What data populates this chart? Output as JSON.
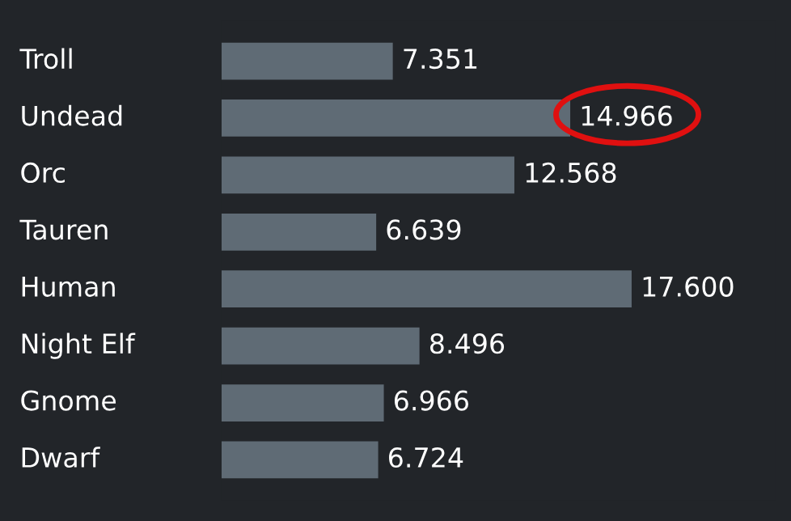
{
  "chart_data": {
    "type": "bar",
    "orientation": "horizontal",
    "categories": [
      "Troll",
      "Undead",
      "Orc",
      "Tauren",
      "Human",
      "Night Elf",
      "Gnome",
      "Dwarf"
    ],
    "values": [
      7.351,
      14.966,
      12.568,
      6.639,
      17.6,
      8.496,
      6.966,
      6.724
    ],
    "value_labels": [
      "7.351",
      "14.966",
      "12.568",
      "6.639",
      "17.600",
      "8.496",
      "6.966",
      "6.724"
    ],
    "color": "#5f6b75",
    "legend": false,
    "tick_labels": "y"
  }
}
